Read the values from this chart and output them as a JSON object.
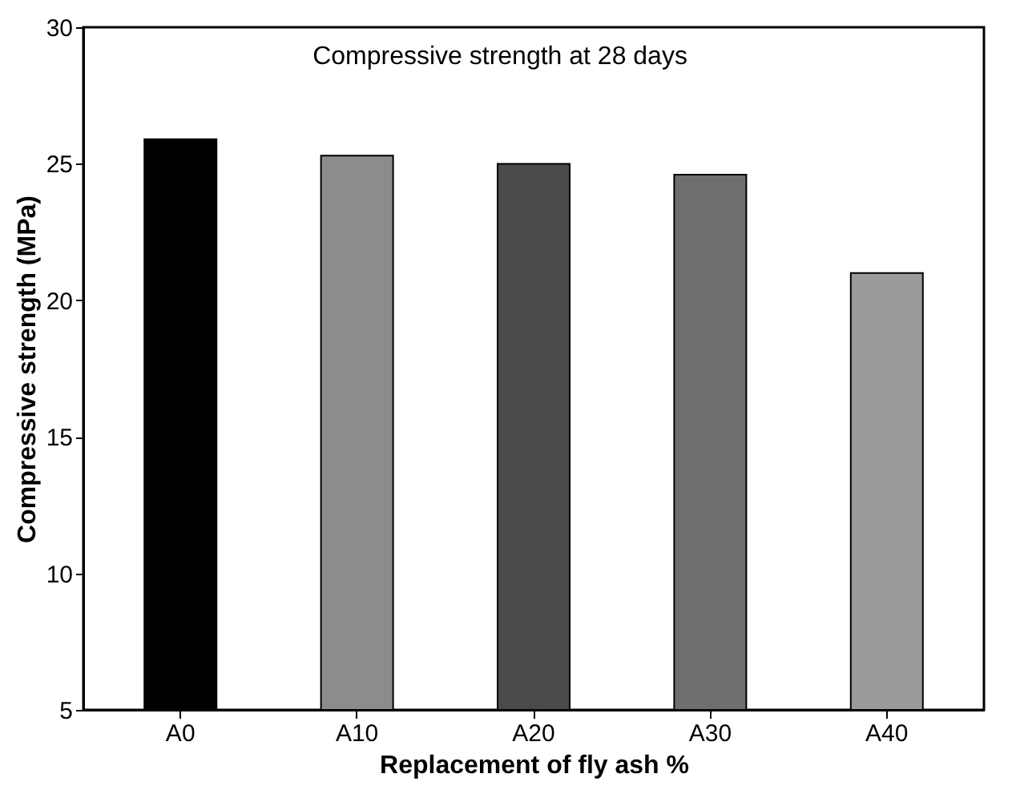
{
  "chart_data": {
    "type": "bar",
    "title": "Compressive strength at 28 days",
    "xlabel": "Replacement of fly ash %",
    "ylabel": "Compressive strength (MPa)",
    "categories": [
      "A0",
      "A10",
      "A20",
      "A30",
      "A40"
    ],
    "values": [
      25.9,
      25.3,
      25.0,
      24.6,
      21.0
    ],
    "colors": [
      "#000000",
      "#8c8c8c",
      "#4a4a4a",
      "#6e6e6e",
      "#9a9a9a"
    ],
    "ylim": [
      5,
      30
    ],
    "yticks": [
      5,
      10,
      15,
      20,
      25,
      30
    ],
    "grid": false
  }
}
